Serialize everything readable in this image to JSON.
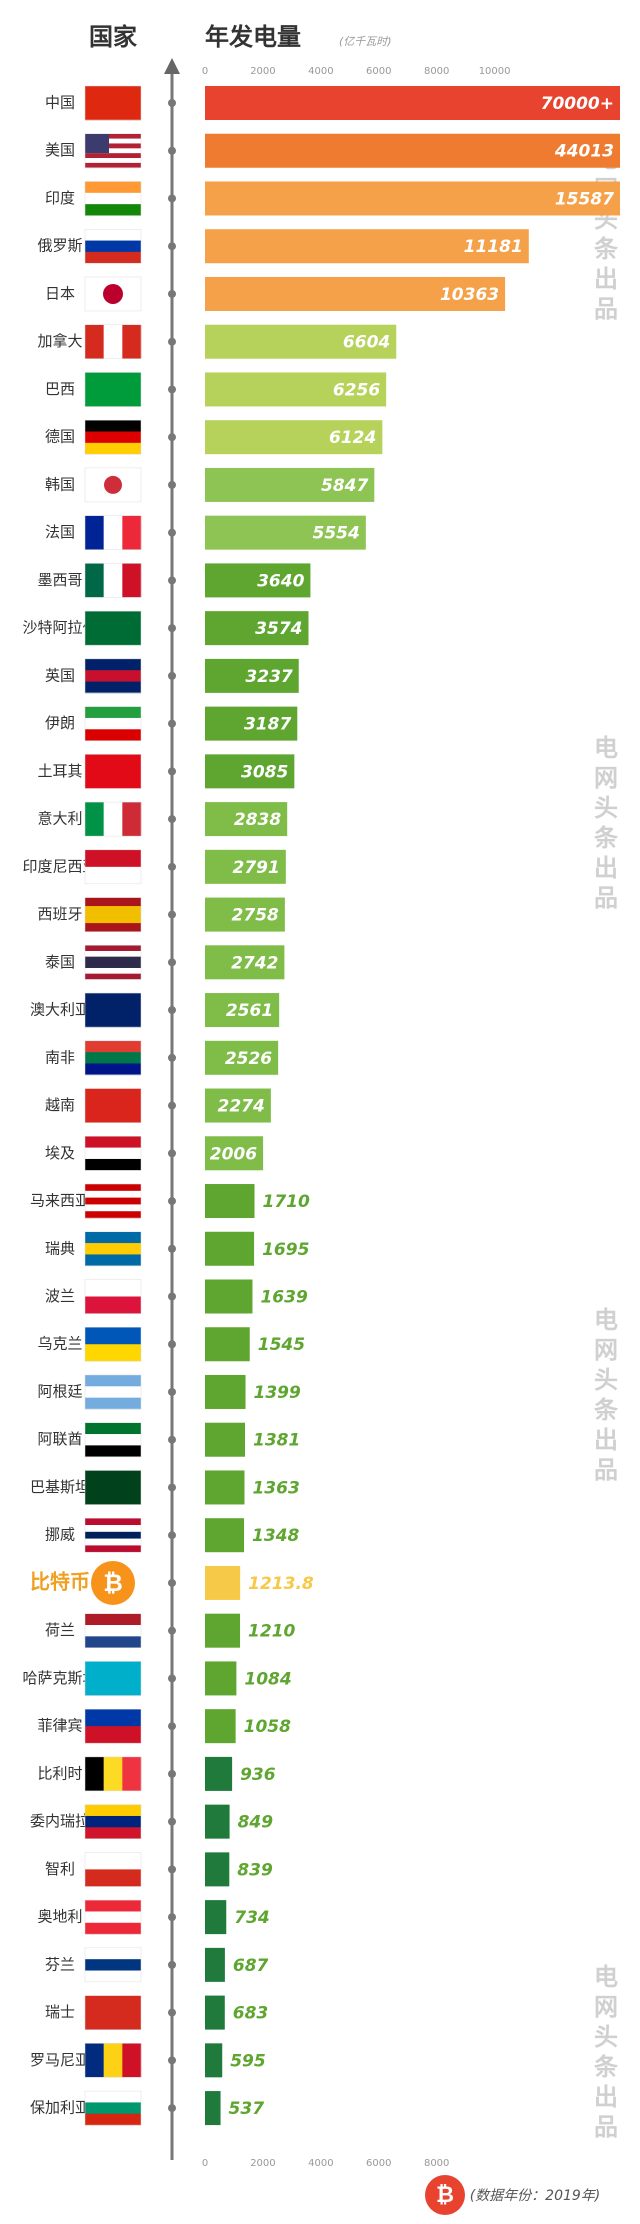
{
  "chart_data": {
    "type": "bar",
    "orientation": "horizontal",
    "title": "国家",
    "subtitle": "年发电量",
    "unit": "(亿千瓦时)",
    "watermark": "电网头条出品",
    "footer": "(数据年份：2019年)",
    "categories": [
      "中国",
      "美国",
      "印度",
      "俄罗斯",
      "日本",
      "加拿大",
      "巴西",
      "德国",
      "韩国",
      "法国",
      "墨西哥",
      "沙特阿拉伯",
      "英国",
      "伊朗",
      "土耳其",
      "意大利",
      "印度尼西亚",
      "西班牙",
      "泰国",
      "澳大利亚",
      "南非",
      "越南",
      "埃及",
      "马来西亚",
      "瑞典",
      "波兰",
      "乌克兰",
      "阿根廷",
      "阿联酋",
      "巴基斯坦",
      "挪威",
      "比特币",
      "荷兰",
      "哈萨克斯坦",
      "菲律宾",
      "比利时",
      "委内瑞拉",
      "智利",
      "奥地利",
      "芬兰",
      "瑞士",
      "罗马尼亚",
      "保加利亚"
    ],
    "values": [
      70000,
      44013,
      15587,
      11181,
      10363,
      6604,
      6256,
      6124,
      5847,
      5554,
      3640,
      3574,
      3237,
      3187,
      3085,
      2838,
      2791,
      2758,
      2742,
      2561,
      2526,
      2274,
      2006,
      1710,
      1695,
      1639,
      1545,
      1399,
      1381,
      1363,
      1348,
      1213.8,
      1210,
      1084,
      1058,
      936,
      849,
      839,
      734,
      687,
      683,
      595,
      537
    ],
    "value_labels": [
      "70000+",
      "44013",
      "15587",
      "11181",
      "10363",
      "6604",
      "6256",
      "6124",
      "5847",
      "5554",
      "3640",
      "3574",
      "3237",
      "3187",
      "3085",
      "2838",
      "2791",
      "2758",
      "2742",
      "2561",
      "2526",
      "2274",
      "2006",
      "1710",
      "1695",
      "1639",
      "1545",
      "1399",
      "1381",
      "1363",
      "1348",
      "1213.8",
      "1210",
      "1084",
      "1058",
      "936",
      "849",
      "839",
      "734",
      "687",
      "683",
      "595",
      "537"
    ],
    "colors": [
      "#e8432f",
      "#ee7b30",
      "#f4a14a",
      "#f4a14a",
      "#f4a14a",
      "#b6d25b",
      "#b6d25b",
      "#b6d25b",
      "#8dc453",
      "#8dc453",
      "#5fa631",
      "#5fa631",
      "#5fa631",
      "#5fa631",
      "#5fa631",
      "#7fbc48",
      "#7fbc48",
      "#7fbc48",
      "#7fbc48",
      "#7fbc48",
      "#7fbc48",
      "#7fbc48",
      "#7fbc48",
      "#5fa631",
      "#5fa631",
      "#5fa631",
      "#5fa631",
      "#5fa631",
      "#5fa631",
      "#5fa631",
      "#5fa631",
      "#f7c948",
      "#5fa631",
      "#5fa631",
      "#5fa631",
      "#1f7a3c",
      "#1f7a3c",
      "#1f7a3c",
      "#1f7a3c",
      "#1f7a3c",
      "#1f7a3c",
      "#1f7a3c",
      "#1f7a3c"
    ],
    "highlight_color": "#f7c948",
    "xlim": [
      0,
      10000
    ],
    "xticks": [
      0,
      2000,
      4000,
      6000,
      8000,
      10000
    ],
    "bottom_xticks": [
      0,
      2000,
      4000,
      6000,
      8000
    ]
  }
}
